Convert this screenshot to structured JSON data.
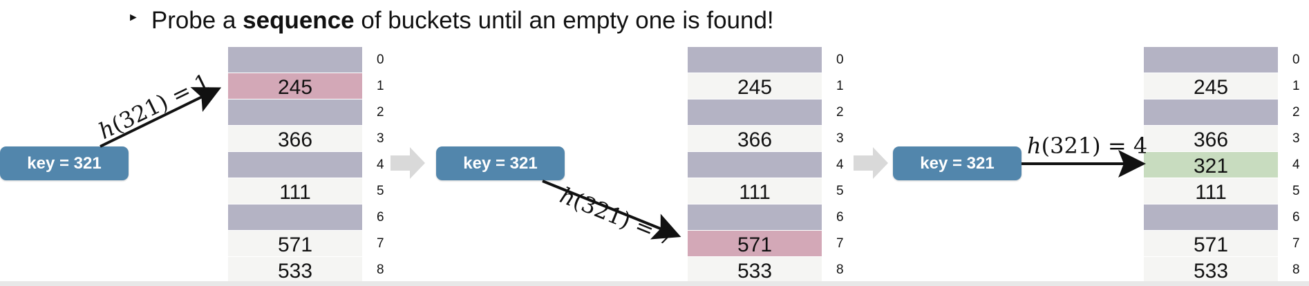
{
  "bullet": {
    "prefix": "Probe a ",
    "bold": "sequence",
    "suffix": " of buckets until an empty one is found!"
  },
  "key_label": "key = 321",
  "indices": [
    "0",
    "1",
    "2",
    "3",
    "4",
    "5",
    "6",
    "7",
    "8"
  ],
  "steps": [
    {
      "rows": [
        "",
        "245",
        "",
        "366",
        "",
        "111",
        "",
        "571",
        "533"
      ],
      "highlight_index": 1,
      "highlight": "collision",
      "hash_fn": "h",
      "hash_arg": "(321) = 1"
    },
    {
      "rows": [
        "",
        "245",
        "",
        "366",
        "",
        "111",
        "",
        "571",
        "533"
      ],
      "highlight_index": 7,
      "highlight": "collision",
      "hash_fn": "h",
      "hash_arg": "(321) = 7"
    },
    {
      "rows": [
        "",
        "245",
        "",
        "366",
        "321",
        "111",
        "",
        "571",
        "533"
      ],
      "highlight_index": 4,
      "highlight": "inserted",
      "hash_fn": "h",
      "hash_arg": "(321) = 4"
    }
  ],
  "colors": {
    "key_box": "#5286ac",
    "empty_slot": "#b4b3c4",
    "filled_slot": "#f5f5f3",
    "collision_slot": "#d3a8b7",
    "inserted_slot": "#c8dcbf",
    "flow_arrow": "#d9d9d9"
  }
}
